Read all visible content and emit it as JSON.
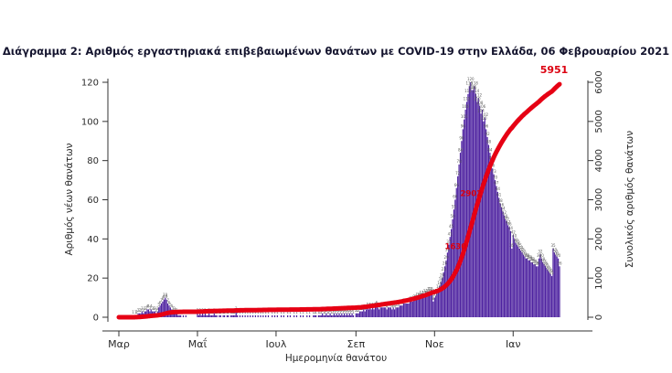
{
  "header": {
    "title": "Διάγραμμα 2: Αριθμός εργαστηριακά επιβεβαιωμένων θανάτων με COVID-19 στην Ελλάδα, 06 Φεβρουαρίου 2021"
  },
  "chart_data": {
    "type": "bar",
    "title": "Διάγραμμα 2: Αριθμός εργαστηριακά επιβεβαιωμένων θανάτων με COVID-19 στην Ελλάδα, 06 Φεβρουαρίου 2021",
    "xlabel": "Ημερομηνία θανάτου",
    "ylabel_left": "Αριθμός νέων θανάτων",
    "ylabel_right": "Συνολικός αριθμός θανάτων",
    "ylim_left": [
      0,
      120
    ],
    "yticks_left": [
      0,
      20,
      40,
      60,
      80,
      100,
      120
    ],
    "ylim_right": [
      0,
      6000
    ],
    "yticks_right": [
      0,
      1000,
      2000,
      3000,
      4000,
      5000,
      6000
    ],
    "grid": false,
    "legend": "none",
    "x_unit": "day (1 Mar 2020 - 6 Feb 2021)",
    "month_ticks": [
      {
        "label": "Μαρ",
        "day": 0
      },
      {
        "label": "Μαΐ",
        "day": 61
      },
      {
        "label": "Ιουλ",
        "day": 122
      },
      {
        "label": "Σεπ",
        "day": 184
      },
      {
        "label": "Νοε",
        "day": 245
      },
      {
        "label": "Ιαν",
        "day": 306
      }
    ],
    "series": [
      {
        "name": "Αριθμός νέων θανάτων",
        "type": "bar",
        "color": "#4e22a0",
        "values": [
          0,
          0,
          0,
          0,
          0,
          0,
          0,
          0,
          0,
          0,
          0,
          1,
          0,
          1,
          1,
          2,
          2,
          2,
          3,
          2,
          3,
          3,
          4,
          4,
          3,
          4,
          3,
          3,
          3,
          2,
          3,
          5,
          6,
          7,
          8,
          9,
          10,
          9,
          7,
          6,
          5,
          4,
          3,
          3,
          2,
          2,
          1,
          1,
          1,
          0,
          1,
          0,
          1,
          0,
          0,
          0,
          0,
          0,
          0,
          0,
          0,
          2,
          1,
          2,
          1,
          2,
          1,
          2,
          1,
          1,
          2,
          1,
          1,
          1,
          2,
          1,
          1,
          0,
          1,
          1,
          0,
          1,
          1,
          0,
          1,
          1,
          0,
          1,
          1,
          1,
          1,
          3,
          1,
          0,
          1,
          0,
          1,
          0,
          1,
          0,
          1,
          0,
          1,
          0,
          1,
          0,
          1,
          0,
          1,
          0,
          1,
          0,
          1,
          0,
          1,
          0,
          1,
          0,
          0,
          1,
          0,
          1,
          0,
          1,
          0,
          0,
          1,
          0,
          1,
          0,
          0,
          1,
          0,
          1,
          0,
          0,
          1,
          0,
          1,
          0,
          0,
          1,
          0,
          1,
          0,
          0,
          1,
          0,
          1,
          0,
          0,
          1,
          1,
          1,
          0,
          1,
          1,
          1,
          2,
          1,
          1,
          2,
          1,
          1,
          2,
          1,
          1,
          2,
          1,
          2,
          1,
          2,
          1,
          2,
          1,
          2,
          1,
          2,
          1,
          2,
          1,
          2,
          1,
          0,
          2,
          2,
          2,
          3,
          3,
          3,
          4,
          3,
          4,
          5,
          4,
          5,
          4,
          5,
          4,
          5,
          6,
          5,
          4,
          5,
          5,
          5,
          5,
          5,
          4,
          5,
          5,
          5,
          4,
          5,
          4,
          5,
          5,
          5,
          6,
          6,
          6,
          7,
          7,
          7,
          7,
          7,
          8,
          8,
          8,
          9,
          9,
          9,
          10,
          10,
          10,
          11,
          10,
          11,
          12,
          11,
          12,
          13,
          13,
          12,
          8,
          10,
          11,
          12,
          14,
          16,
          18,
          20,
          23,
          26,
          29,
          33,
          37,
          41,
          45,
          50,
          55,
          60,
          66,
          72,
          78,
          84,
          90,
          96,
          101,
          106,
          110,
          114,
          118,
          120,
          116,
          116,
          118,
          114,
          110,
          112,
          108,
          104,
          106,
          100,
          102,
          96,
          92,
          88,
          84,
          80,
          76,
          73,
          70,
          67,
          64,
          61,
          58,
          56,
          54,
          52,
          50,
          49,
          47,
          46,
          44,
          35,
          42,
          40,
          38,
          37,
          36,
          35,
          34,
          33,
          32,
          31,
          30,
          30,
          29,
          29,
          28,
          28,
          27,
          27,
          26,
          26,
          30,
          32,
          30,
          28,
          27,
          26,
          25,
          24,
          23,
          22,
          21,
          35,
          33,
          32,
          31,
          30,
          26
        ]
      },
      {
        "name": "Συνολικός αριθμός θανάτων",
        "type": "line",
        "color": "#e60014",
        "derived": "cumulative_of_bars",
        "final_total": 5951
      }
    ],
    "annotations": [
      {
        "text": "1630",
        "day_index": 267,
        "emphasis": false
      },
      {
        "text": "2902",
        "day_index": 279,
        "emphasis": false
      },
      {
        "text": "5951",
        "day_index": 342,
        "emphasis": true
      }
    ]
  },
  "colors": {
    "bar": "#4e22a0",
    "cumulative_line": "#e60014",
    "annotation_text": "#dc0010",
    "axis": "#333333",
    "tick_label": "#2a2a2a",
    "bar_value_label": "#5a5a5a",
    "title": "#14142e",
    "background": "#ffffff"
  }
}
